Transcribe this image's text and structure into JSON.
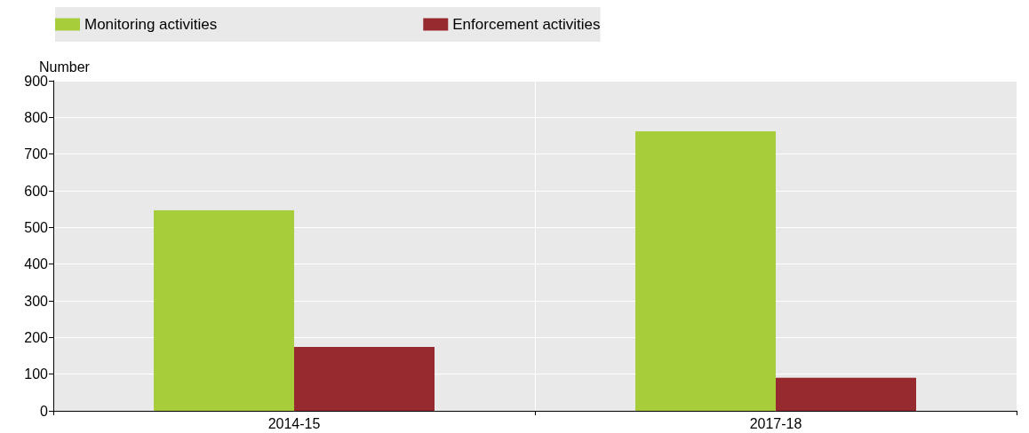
{
  "chart_data": {
    "type": "bar",
    "ylabel": "Number",
    "categories": [
      "2014-15",
      "2017-18"
    ],
    "series": [
      {
        "name": "Monitoring activities",
        "color": "#a8cd3a",
        "values": [
          547,
          762
        ]
      },
      {
        "name": "Enforcement activities",
        "color": "#962a2f",
        "values": [
          174,
          90
        ]
      }
    ],
    "ylim": [
      0,
      900
    ],
    "yticks": [
      0,
      100,
      200,
      300,
      400,
      500,
      600,
      700,
      800,
      900
    ],
    "grid": true,
    "legend": "top"
  }
}
